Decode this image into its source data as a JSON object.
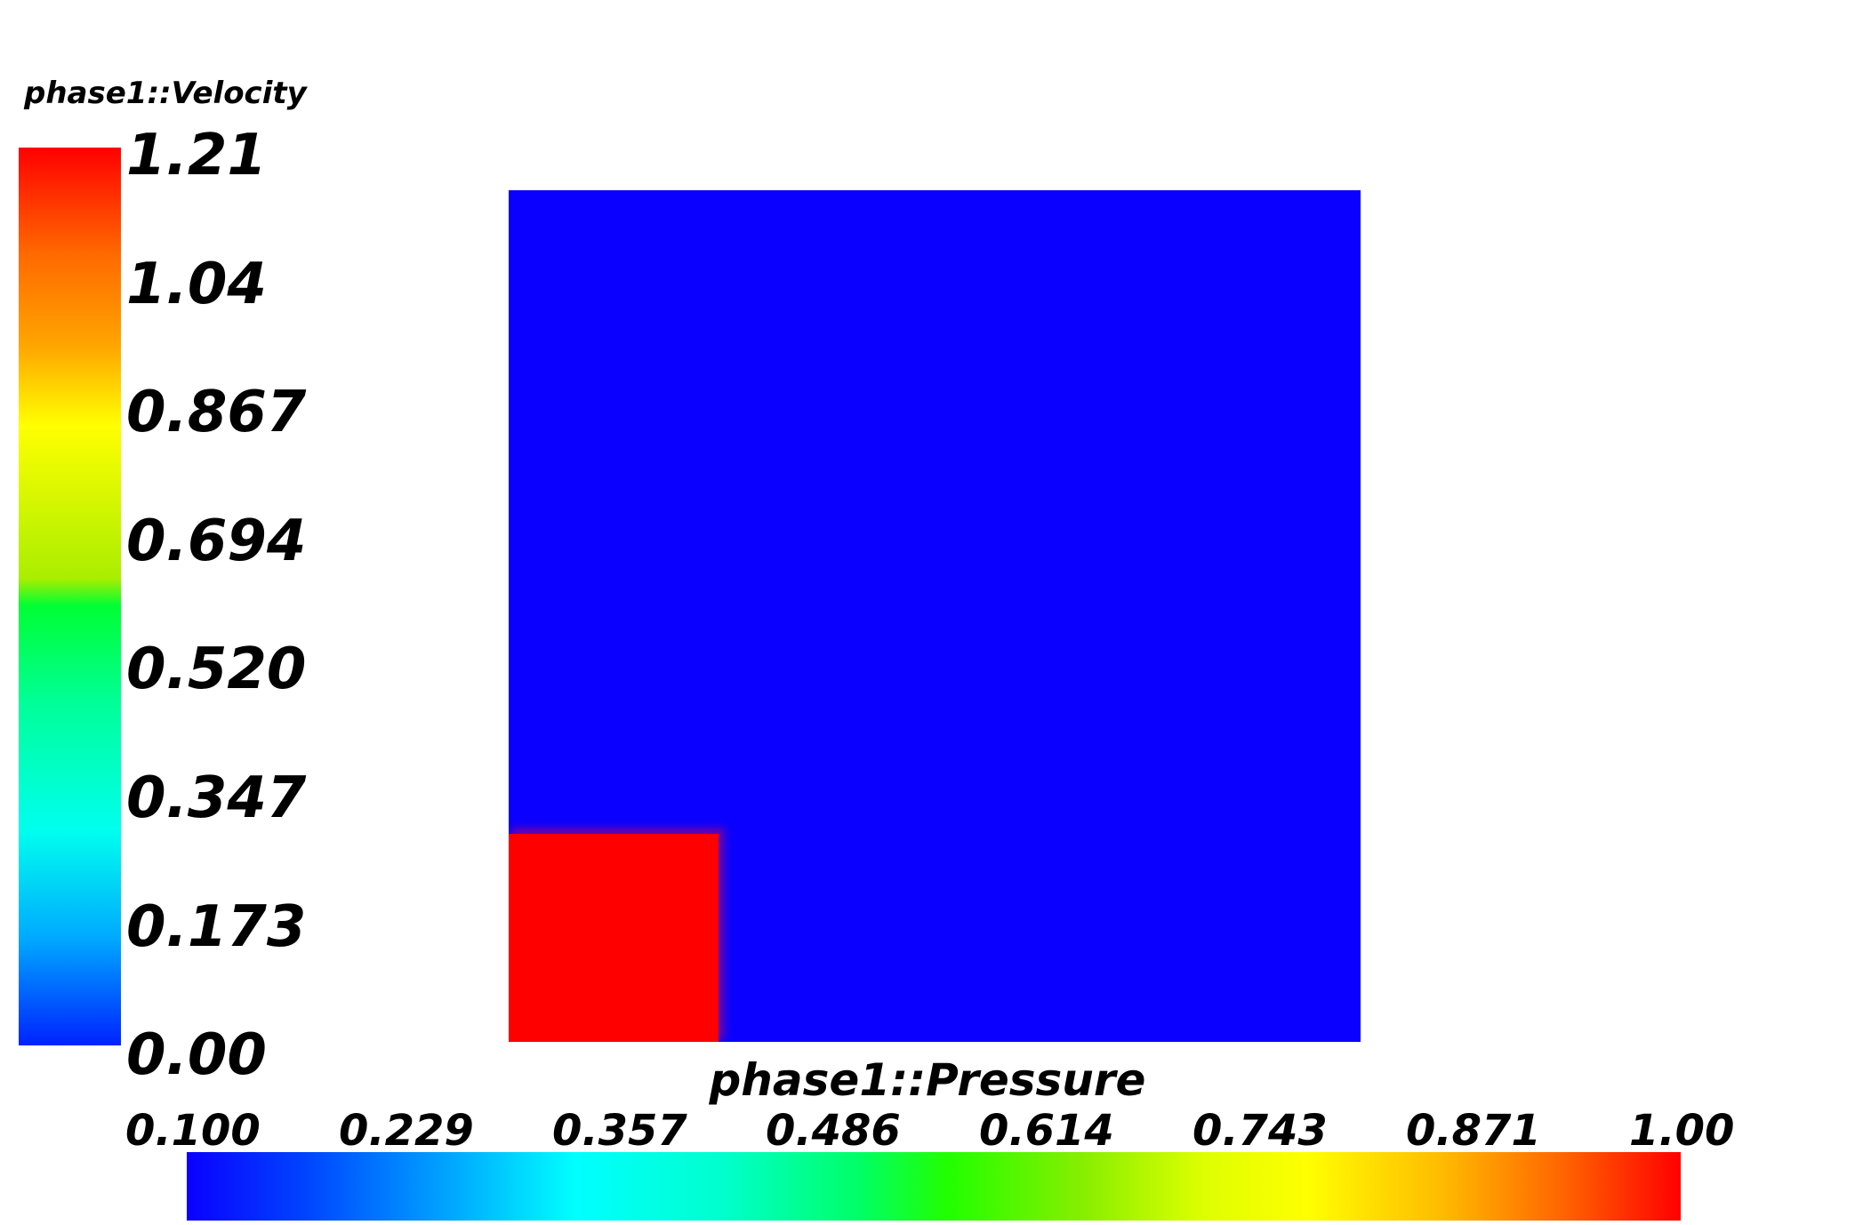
{
  "velocity_colorbar": {
    "title": "phase1::Velocity",
    "labels": [
      "1.21",
      "1.04",
      "0.867",
      "0.694",
      "0.520",
      "0.347",
      "0.173",
      "0.00"
    ]
  },
  "pressure_colorbar": {
    "title": "phase1::Pressure",
    "labels": [
      "0.100",
      "0.229",
      "0.357",
      "0.486",
      "0.614",
      "0.743",
      "0.871",
      "1.00"
    ]
  },
  "field_colors": {
    "low": "#0a00ff",
    "high": "#ff0000"
  }
}
